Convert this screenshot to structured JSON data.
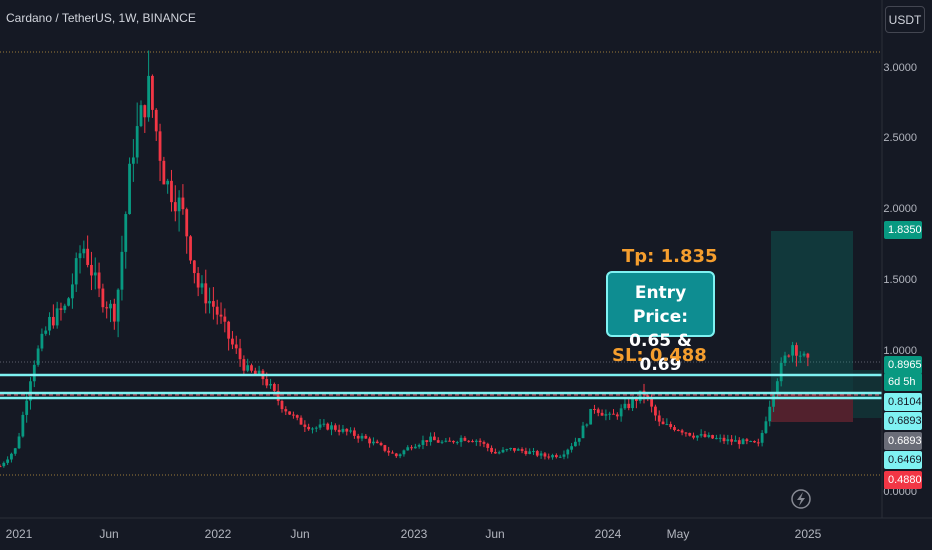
{
  "header": {
    "symbol_title": "Cardano / TetherUS, 1W, BINANCE",
    "currency_button": "USDT"
  },
  "annotations": {
    "tp": "Tp: 1.835",
    "entry_line1": "Entry Price:",
    "entry_line2": "0.65 & 0.69",
    "sl": "SL: 0.488"
  },
  "price_tags": [
    {
      "label": "1.8350",
      "bg": "#089981",
      "color": "#ffffff"
    },
    {
      "label": "0.8965",
      "bg": "#089981",
      "color": "#ffffff"
    },
    {
      "label": "6d 5h",
      "bg": "#089981",
      "color": "#ffffff"
    },
    {
      "label": "0.8104",
      "bg": "#7ff2f2",
      "color": "#151924"
    },
    {
      "label": "0.6893",
      "bg": "#7ff2f2",
      "color": "#151924"
    },
    {
      "label": "0.6893",
      "bg": "#6a6d78",
      "color": "#ffffff"
    },
    {
      "label": "0.6469",
      "bg": "#7ff2f2",
      "color": "#151924"
    },
    {
      "label": "0.4880",
      "bg": "#f23645",
      "color": "#ffffff"
    }
  ],
  "colors": {
    "up": "#089981",
    "down": "#f23645",
    "level_line": "#7ff2f2",
    "annotation": "#f59e2e",
    "background": "#151924"
  },
  "chart_data": {
    "type": "candlestick",
    "title": "Cardano / TetherUS, 1W, BINANCE",
    "y_ticks": [
      "3.0000",
      "2.5000",
      "2.0000",
      "1.5000",
      "1.0000",
      "0.0000"
    ],
    "x_ticks": [
      "2021",
      "Jun",
      "2022",
      "Jun",
      "2023",
      "Jun",
      "2024",
      "May",
      "2025"
    ],
    "ylim": [
      0,
      3.1
    ],
    "levels": {
      "take_profit": 1.835,
      "entry": [
        0.65,
        0.69
      ],
      "stop_loss": 0.488,
      "horizontal_lines": [
        0.8104,
        0.6893,
        0.6469
      ],
      "last_price": 0.8965
    },
    "price_path": [
      [
        "2020-12",
        0.18
      ],
      [
        "2021-01",
        0.31
      ],
      [
        "2021-02",
        0.9
      ],
      [
        "2021-03",
        1.2
      ],
      [
        "2021-04",
        1.3
      ],
      [
        "2021-05",
        1.75
      ],
      [
        "2021-06",
        1.4
      ],
      [
        "2021-07",
        1.25
      ],
      [
        "2021-08",
        2.4
      ],
      [
        "2021-09",
        2.85
      ],
      [
        "2021-10",
        2.2
      ],
      [
        "2021-11",
        2.0
      ],
      [
        "2021-12",
        1.45
      ],
      [
        "2022-01",
        1.3
      ],
      [
        "2022-02",
        1.05
      ],
      [
        "2022-03",
        0.85
      ],
      [
        "2022-04",
        0.8
      ],
      [
        "2022-05",
        0.62
      ],
      [
        "2022-06",
        0.5
      ],
      [
        "2022-07",
        0.45
      ],
      [
        "2022-08",
        0.46
      ],
      [
        "2022-09",
        0.42
      ],
      [
        "2022-10",
        0.38
      ],
      [
        "2022-11",
        0.32
      ],
      [
        "2022-12",
        0.25
      ],
      [
        "2023-01",
        0.33
      ],
      [
        "2023-02",
        0.37
      ],
      [
        "2023-03",
        0.34
      ],
      [
        "2023-04",
        0.38
      ],
      [
        "2023-05",
        0.36
      ],
      [
        "2023-06",
        0.27
      ],
      [
        "2023-07",
        0.3
      ],
      [
        "2023-08",
        0.28
      ],
      [
        "2023-09",
        0.25
      ],
      [
        "2023-10",
        0.26
      ],
      [
        "2023-11",
        0.37
      ],
      [
        "2023-12",
        0.6
      ],
      [
        "2024-01",
        0.52
      ],
      [
        "2024-02",
        0.6
      ],
      [
        "2024-03",
        0.7
      ],
      [
        "2024-04",
        0.47
      ],
      [
        "2024-05",
        0.45
      ],
      [
        "2024-06",
        0.4
      ],
      [
        "2024-07",
        0.38
      ],
      [
        "2024-08",
        0.36
      ],
      [
        "2024-09",
        0.35
      ],
      [
        "2024-10",
        0.33
      ],
      [
        "2024-11",
        0.78
      ],
      [
        "2024-12",
        1.05
      ],
      [
        "2025-01",
        0.8965
      ]
    ]
  }
}
